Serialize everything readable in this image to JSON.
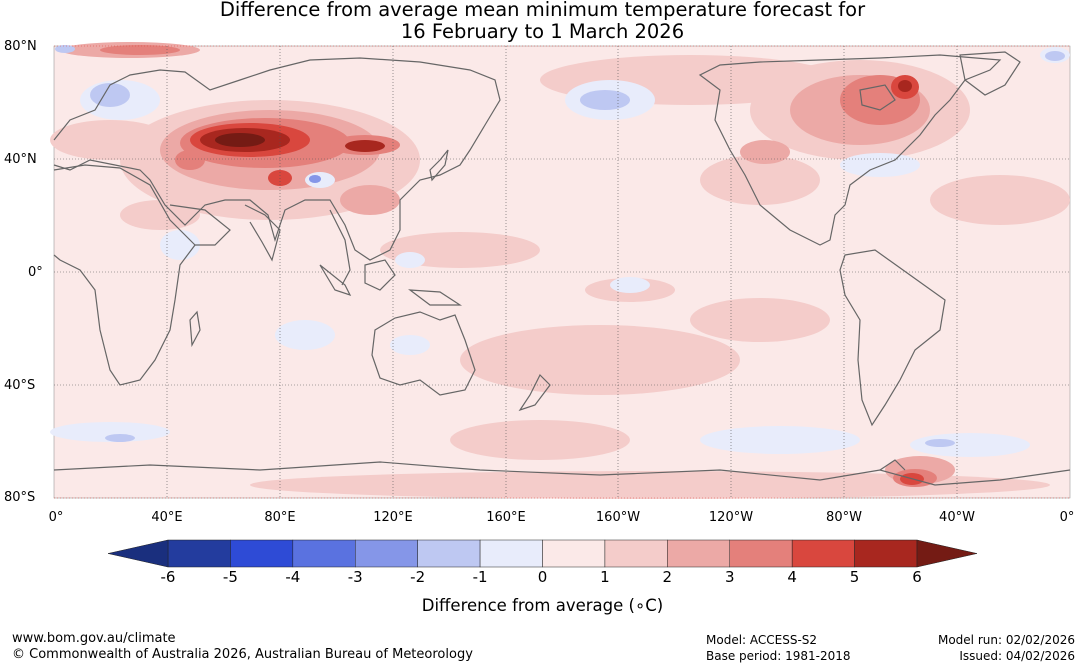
{
  "title": {
    "line1": "Difference from average mean minimum temperature forecast for",
    "line2": "16 February to 1 March 2026"
  },
  "map": {
    "lat_labels": [
      "80°N",
      "40°N",
      "0°",
      "40°S",
      "80°S"
    ],
    "lon_labels": [
      "0°",
      "40°E",
      "80°E",
      "120°E",
      "160°E",
      "160°W",
      "120°W",
      "80°W",
      "40°W",
      "0°"
    ]
  },
  "colorbar": {
    "title": "Difference from average (∘C)",
    "ticks": [
      "-6",
      "-5",
      "-4",
      "-3",
      "-2",
      "-1",
      "0",
      "1",
      "2",
      "3",
      "4",
      "5",
      "6"
    ],
    "colors": [
      "#233c9e",
      "#2e4bd6",
      "#5a72e0",
      "#8596e8",
      "#bec8f2",
      "#e8ecfb",
      "#fbe9e8",
      "#f4ccca",
      "#eca9a6",
      "#e4807b",
      "#d9473e",
      "#a8271f"
    ],
    "extend_low_color": "#1a2f7e",
    "extend_high_color": "#741b14"
  },
  "footer": {
    "url": "www.bom.gov.au/climate",
    "copyright": "© Commonwealth of Australia 2026, Australian Bureau of Meteorology",
    "model": "Model: ACCESS-S2",
    "base_period": "Base period: 1981-2018",
    "model_run": "Model run: 02/02/2026",
    "issued": "Issued: 04/02/2026"
  }
}
